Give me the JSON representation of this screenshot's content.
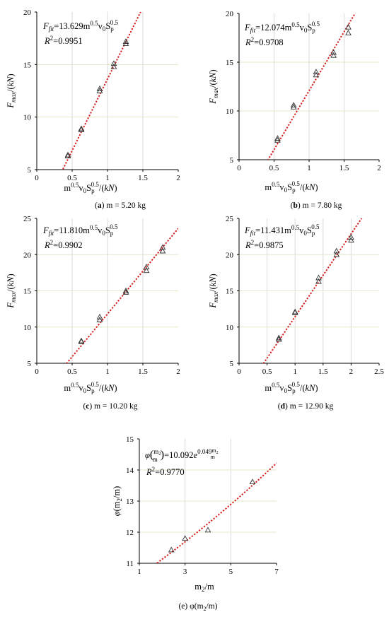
{
  "chart_data": [
    {
      "type": "scatter",
      "panel_caption": {
        "letter": "a",
        "text": " m = 5.20 kg"
      },
      "xlabel": "m0.5v0Sp0.5/(kN)",
      "ylabel": "Fmax/(kN)",
      "xlim": [
        0,
        2
      ],
      "ylim": [
        5,
        20
      ],
      "xticks": [
        "0",
        "0.5",
        "1",
        "1.5",
        "2"
      ],
      "yticks": [
        "5",
        "10",
        "15",
        "20"
      ],
      "fit_equation": "Ffit=13.629m0.5v0Sp0.5",
      "r2": "R2=0.9951",
      "fit_slope": 13.629,
      "points": [
        {
          "x": 0.44,
          "y": 6.4
        },
        {
          "x": 0.44,
          "y": 6.3
        },
        {
          "x": 0.63,
          "y": 8.8
        },
        {
          "x": 0.63,
          "y": 8.9
        },
        {
          "x": 0.89,
          "y": 12.5
        },
        {
          "x": 0.89,
          "y": 12.7
        },
        {
          "x": 1.09,
          "y": 14.8
        },
        {
          "x": 1.09,
          "y": 15.1
        },
        {
          "x": 1.26,
          "y": 17.0
        },
        {
          "x": 1.26,
          "y": 17.2
        }
      ]
    },
    {
      "type": "scatter",
      "panel_caption": {
        "letter": "b",
        "text": " m = 7.80 kg"
      },
      "xlabel": "m0.5v0Sp0.5/(kN)",
      "ylabel": "Fmax/(kN)",
      "xlim": [
        0,
        2
      ],
      "ylim": [
        5,
        20
      ],
      "xticks": [
        "0",
        "0.5",
        "1",
        "1.5",
        "2"
      ],
      "yticks": [
        "5",
        "10",
        "15",
        "20"
      ],
      "fit_equation": "Ffit=12.074m0.5v0Sp0.5",
      "r2": "R2=0.9708",
      "fit_slope": 12.074,
      "points": [
        {
          "x": 0.55,
          "y": 7.0
        },
        {
          "x": 0.55,
          "y": 7.2
        },
        {
          "x": 0.78,
          "y": 10.4
        },
        {
          "x": 0.78,
          "y": 10.6
        },
        {
          "x": 1.1,
          "y": 13.7
        },
        {
          "x": 1.1,
          "y": 14.0
        },
        {
          "x": 1.35,
          "y": 15.7
        },
        {
          "x": 1.35,
          "y": 16.0
        },
        {
          "x": 1.56,
          "y": 18.0
        },
        {
          "x": 1.56,
          "y": 18.6
        }
      ]
    },
    {
      "type": "scatter",
      "panel_caption": {
        "letter": "c",
        "text": " m = 10.20 kg"
      },
      "xlabel": "m0.5v0Sp0.5/(kN)",
      "ylabel": "Fmax/(kN)",
      "xlim": [
        0,
        2
      ],
      "ylim": [
        5,
        25
      ],
      "xticks": [
        "0",
        "0.5",
        "1",
        "1.5",
        "2"
      ],
      "yticks": [
        "5",
        "10",
        "15",
        "20",
        "25"
      ],
      "fit_equation": "Ffit=11.810m0.5v0Sp0.5",
      "r2": "R2=0.9902",
      "fit_slope": 11.81,
      "points": [
        {
          "x": 0.63,
          "y": 8.0
        },
        {
          "x": 0.63,
          "y": 8.1
        },
        {
          "x": 0.89,
          "y": 11.0
        },
        {
          "x": 0.89,
          "y": 11.4
        },
        {
          "x": 1.26,
          "y": 14.8
        },
        {
          "x": 1.26,
          "y": 15.0
        },
        {
          "x": 1.55,
          "y": 17.8
        },
        {
          "x": 1.55,
          "y": 18.3
        },
        {
          "x": 1.78,
          "y": 20.5
        },
        {
          "x": 1.78,
          "y": 21.0
        }
      ]
    },
    {
      "type": "scatter",
      "panel_caption": {
        "letter": "d",
        "text": " m = 12.90 kg"
      },
      "xlabel": "m0.5v0Sp0.5/(kN)",
      "ylabel": "Fmax/(kN)",
      "xlim": [
        0,
        2.5
      ],
      "ylim": [
        5,
        25
      ],
      "xticks": [
        "0",
        "0.5",
        "1",
        "1.5",
        "2",
        "2.5"
      ],
      "yticks": [
        "5",
        "10",
        "15",
        "20",
        "25"
      ],
      "fit_equation": "Ffit=11.431m0.5v0Sp0.5",
      "r2": "R2=0.9875",
      "fit_slope": 11.431,
      "points": [
        {
          "x": 0.71,
          "y": 8.3
        },
        {
          "x": 0.71,
          "y": 8.5
        },
        {
          "x": 1.0,
          "y": 12.0
        },
        {
          "x": 1.0,
          "y": 12.1
        },
        {
          "x": 1.42,
          "y": 16.3
        },
        {
          "x": 1.42,
          "y": 16.8
        },
        {
          "x": 1.74,
          "y": 20.0
        },
        {
          "x": 1.74,
          "y": 20.5
        },
        {
          "x": 2.0,
          "y": 22.0
        },
        {
          "x": 2.0,
          "y": 22.4
        }
      ]
    },
    {
      "type": "scatter",
      "panel_caption": {
        "letter": "e",
        "text": " φ(m2/m)"
      },
      "xlabel": "m2/m",
      "ylabel": "φ(m2/m)",
      "xlim": [
        1,
        7
      ],
      "ylim": [
        11,
        15
      ],
      "xticks": [
        "1",
        "3",
        "5",
        "7"
      ],
      "yticks": [
        "11",
        "12",
        "13",
        "14",
        "15"
      ],
      "fit_equation": "φ(m2/m)=10.092e0.049m2/m",
      "r2": "R2=0.9770",
      "fit_exp": {
        "a": 10.092,
        "b": 0.049
      },
      "points": [
        {
          "x": 2.4,
          "y": 11.43
        },
        {
          "x": 3.0,
          "y": 11.8
        },
        {
          "x": 4.0,
          "y": 12.07
        },
        {
          "x": 5.95,
          "y": 13.62
        }
      ]
    }
  ]
}
